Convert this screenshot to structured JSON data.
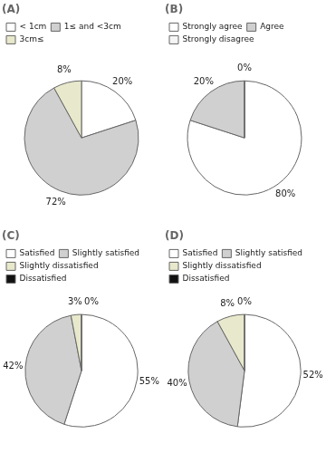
{
  "chart_data": [
    {
      "type": "pie",
      "title": "(A)",
      "categories": [
        "< 1cm",
        "1≤ and <3cm",
        "3cm≤"
      ],
      "values": [
        20,
        72,
        8
      ],
      "value_labels": [
        "20%",
        "72%",
        "8%"
      ],
      "colors": [
        "#ffffff",
        "#d0d0d0",
        "#e8e8cc"
      ],
      "data_labels": true,
      "legend": "top"
    },
    {
      "type": "pie",
      "title": "(B)",
      "categories": [
        "Strongly agree",
        "Agree",
        "Strongly disagree"
      ],
      "values": [
        80,
        20,
        0.001
      ],
      "value_labels": [
        "80%",
        "20%",
        "0%"
      ],
      "colors": [
        "#ffffff",
        "#d0d0d0",
        "#f5f5f5"
      ],
      "data_labels": true,
      "legend": "top"
    },
    {
      "type": "pie",
      "title": "(C)",
      "categories": [
        "Satisfied",
        "Slightly satisfied",
        "Slightly dissatisfied",
        "Dissatisfied"
      ],
      "values": [
        55,
        42,
        3,
        0.001
      ],
      "value_labels": [
        "55%",
        "42%",
        "3%",
        "0%"
      ],
      "colors": [
        "#ffffff",
        "#d0d0d0",
        "#e8e8cc",
        "#111111"
      ],
      "data_labels": true,
      "legend": "top"
    },
    {
      "type": "pie",
      "title": "(D)",
      "categories": [
        "Satisfied",
        "Slightly satisfied",
        "Slightly dissatisfied",
        "Dissatisfied"
      ],
      "values": [
        52,
        40,
        8,
        0.001
      ],
      "value_labels": [
        "52%",
        "40%",
        "8%",
        "0%"
      ],
      "colors": [
        "#ffffff",
        "#d0d0d0",
        "#e8e8cc",
        "#111111"
      ],
      "data_labels": true,
      "legend": "top"
    }
  ]
}
